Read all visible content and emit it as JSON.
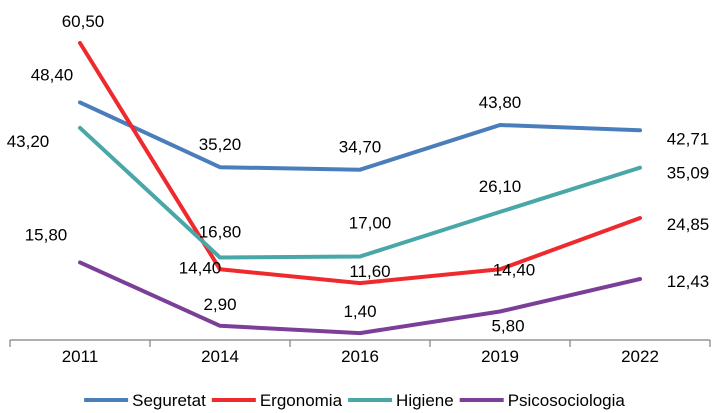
{
  "chart_data": {
    "type": "line",
    "categories": [
      "2011",
      "2014",
      "2016",
      "2019",
      "2022"
    ],
    "series": [
      {
        "name": "Seguretat",
        "color": "#4a7ebb",
        "values": [
          48.4,
          35.2,
          34.7,
          43.8,
          42.71
        ],
        "labels": [
          "48,40",
          "35,20",
          "34,70",
          "43,80",
          "42,71"
        ]
      },
      {
        "name": "Ergonomia",
        "color": "#ee2a2f",
        "values": [
          60.5,
          14.4,
          11.6,
          14.4,
          24.85
        ],
        "labels": [
          "60,50",
          "14,40",
          "11,60",
          "14,40",
          "24,85"
        ]
      },
      {
        "name": "Higiene",
        "color": "#4aa7a8",
        "values": [
          43.2,
          16.8,
          17.0,
          26.1,
          35.09
        ],
        "labels": [
          "43,20",
          "16,80",
          "17,00",
          "26,10",
          "35,09"
        ]
      },
      {
        "name": "Psicosociologia",
        "color": "#7b3f98",
        "values": [
          15.8,
          2.9,
          1.4,
          5.8,
          12.43
        ],
        "labels": [
          "15,80",
          "2,90",
          "1,40",
          "5,80",
          "12,43"
        ]
      }
    ],
    "title": "",
    "xlabel": "",
    "ylabel": "",
    "ylim": [
      0,
      62
    ],
    "grid": false,
    "legend_position": "bottom"
  }
}
